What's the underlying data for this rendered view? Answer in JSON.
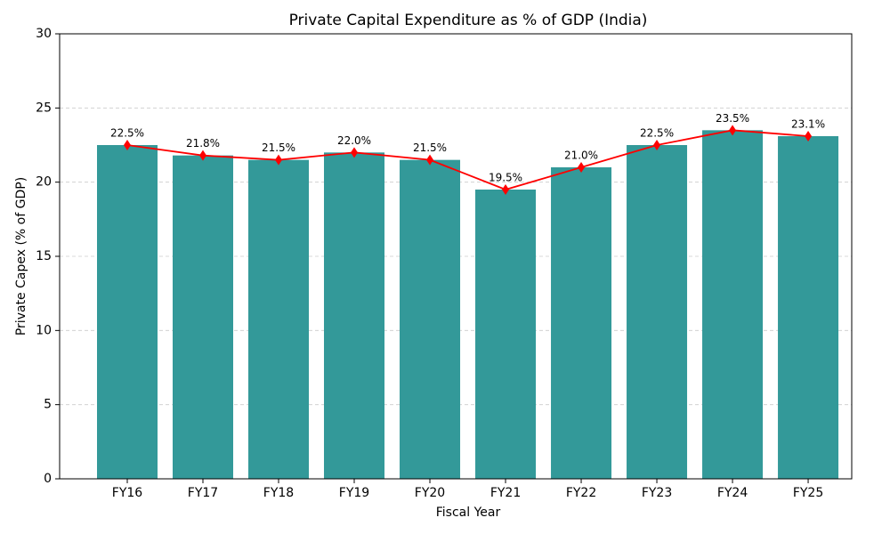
{
  "chart_data": {
    "type": "bar",
    "title": "Private Capital Expenditure as % of GDP (India)",
    "xlabel": "Fiscal Year",
    "ylabel": "Private Capex (% of GDP)",
    "categories": [
      "FY16",
      "FY17",
      "FY18",
      "FY19",
      "FY20",
      "FY21",
      "FY22",
      "FY23",
      "FY24",
      "FY25"
    ],
    "values": [
      22.5,
      21.8,
      21.5,
      22.0,
      21.5,
      19.5,
      21.0,
      22.5,
      23.5,
      23.1
    ],
    "value_labels": [
      "22.5%",
      "21.8%",
      "21.5%",
      "22.0%",
      "21.5%",
      "19.5%",
      "21.0%",
      "22.5%",
      "23.5%",
      "23.1%"
    ],
    "color": "#339999",
    "line_color": "#ff0000",
    "ylim": [
      0,
      30
    ],
    "yticks": [
      0,
      5,
      10,
      15,
      20,
      25,
      30
    ],
    "grid": true
  }
}
